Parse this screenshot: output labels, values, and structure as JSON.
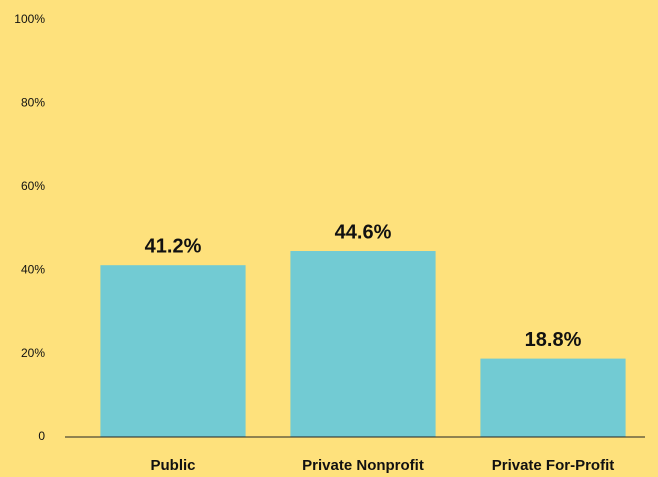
{
  "chart_data": {
    "type": "bar",
    "categories": [
      "Public",
      "Private Nonprofit",
      "Private For-Profit"
    ],
    "values": [
      41.2,
      44.6,
      18.8
    ],
    "value_labels": [
      "41.2%",
      "44.6%",
      "18.8%"
    ],
    "color": "#72cbd3",
    "ylim": [
      0,
      100
    ],
    "yticks": [
      0,
      {
        "value": 20,
        "label": "20%"
      },
      {
        "value": 40,
        "label": "40%"
      },
      {
        "value": 60,
        "label": "60%"
      },
      {
        "value": 80,
        "label": "80%"
      },
      {
        "value": 100,
        "label": "100%"
      }
    ],
    "grid": false
  }
}
